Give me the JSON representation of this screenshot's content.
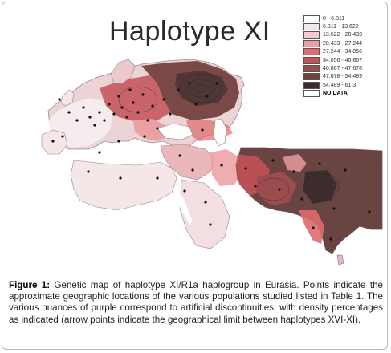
{
  "title": "Haplotype XI",
  "legend": [
    {
      "label": "0 - 6.811",
      "color": "#ffffff"
    },
    {
      "label": "6.811 - 13.622",
      "color": "#f7e6e6"
    },
    {
      "label": "13.622 - 20.433",
      "color": "#f2cccf"
    },
    {
      "label": "20.433 - 27.244",
      "color": "#eba0a3"
    },
    {
      "label": "27.244 - 34.056",
      "color": "#df6b6f"
    },
    {
      "label": "34.056 - 40.867",
      "color": "#c35157"
    },
    {
      "label": "40.867 - 47.678",
      "color": "#9a4c4e"
    },
    {
      "label": "47.678 - 54.489",
      "color": "#6e4240"
    },
    {
      "label": "54.489 - 61.3",
      "color": "#3e2d2c"
    },
    {
      "label": "NO DATA",
      "color": "#ffffff",
      "bold": true
    }
  ],
  "caption": {
    "figure_label": "Figure 1:",
    "text": "Genetic map of haplotype XI/R1a haplogroup in Eurasia. Points indicate the approximate geographic locations of the various populations studied listed in Table 1. The various nuances of purple correspond to artificial discontinuities, with density percentages as indicated (arrow points indicate the geographical limit between haplotypes XVI-XI)."
  }
}
